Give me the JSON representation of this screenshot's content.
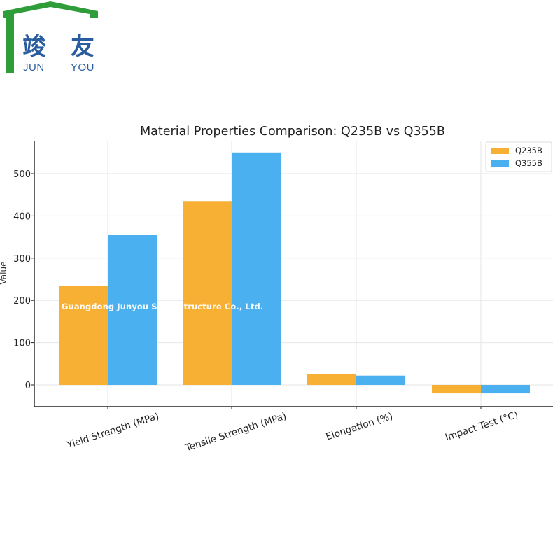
{
  "logo": {
    "cn_chars": [
      "竣",
      "友"
    ],
    "latin_left": "JUN",
    "latin_right": "YOU",
    "green": "#2f9e3a",
    "blue": "#2a5d9f"
  },
  "watermark": "Guangdong Junyou Steel Structure Co., Ltd.",
  "chart_data": {
    "type": "bar",
    "title": "Material Properties Comparison: Q235B vs Q355B",
    "xlabel": "",
    "ylabel": "Value",
    "categories": [
      "Yield Strength (MPa)",
      "Tensile Strength (MPa)",
      "Elongation (%)",
      "Impact Test (°C)"
    ],
    "series": [
      {
        "name": "Q235B",
        "values": [
          235,
          435,
          25,
          -20
        ],
        "color": "#f7b034"
      },
      {
        "name": "Q355B",
        "values": [
          355,
          550,
          22,
          -20
        ],
        "color": "#4ab0f0"
      }
    ],
    "ylim": [
      -50,
      575
    ],
    "yticks": [
      0,
      100,
      200,
      300,
      400,
      500
    ],
    "grid": true,
    "legend": "top-right"
  }
}
